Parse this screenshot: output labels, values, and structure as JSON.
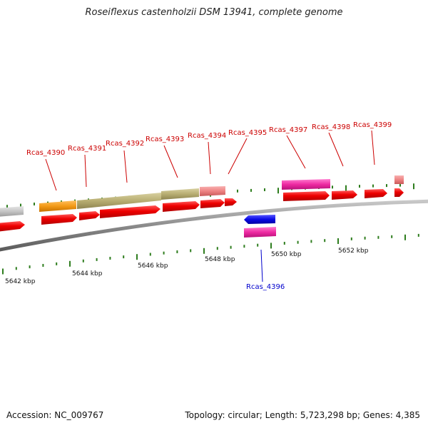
{
  "title": "Roseiflexus castenholzii DSM 13941, complete genome",
  "accession": "Accession: NC_009767",
  "summary": "Topology: circular; Length: 5,723,298 bp; Genes: 4,385",
  "colors": {
    "backbone": "#8a8a8a",
    "tick": "#2e7d1e",
    "gene_cds": "#ee0000",
    "label_forward": "#cc0000",
    "label_reverse": "#0000cc",
    "grey_feature": "#c4c4c4",
    "orange_feature": "#f39a16",
    "olive_feature": "#b8ae72",
    "salmon_feature": "#ee8282",
    "pink_feature": "#ee2aa2",
    "blue_feature": "#0a0ae6"
  },
  "scale_labels": [
    "5642 kbp",
    "5644 kbp",
    "5646 kbp",
    "5648 kbp",
    "5650 kbp",
    "5652 kbp"
  ],
  "gene_labels_top": [
    "Rcas_4390",
    "Rcas_4391",
    "Rcas_4392",
    "Rcas_4393",
    "Rcas_4394",
    "Rcas_4395",
    "Rcas_4397",
    "Rcas_4398",
    "Rcas_4399"
  ],
  "gene_labels_bottom": [
    "Rcas_4396"
  ]
}
